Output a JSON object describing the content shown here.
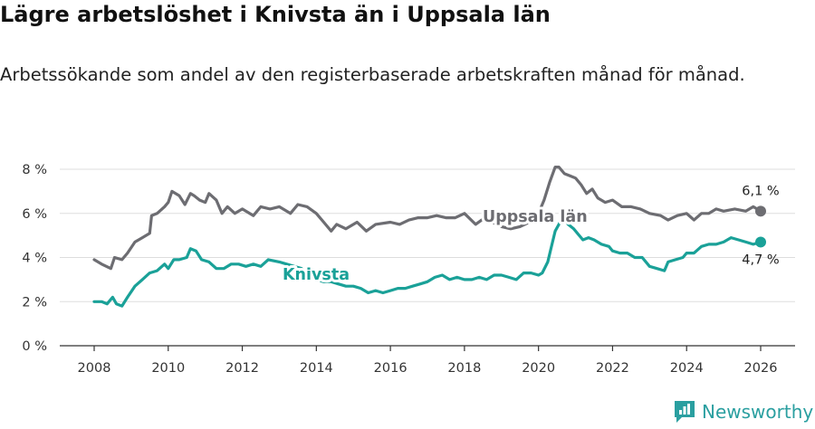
{
  "title": "Lägre arbetslöshet i Knivsta än i Uppsala län",
  "subtitle": "Arbetssökande som andel av den registerbaserade arbetskraften månad för månad.",
  "brand": {
    "name": "Newsworthy",
    "icon": "newsworthy-logo-icon"
  },
  "colors": {
    "uppsala": "#6d6d72",
    "knivsta": "#1aa198",
    "grid": "#dddddd"
  },
  "chart_data": {
    "type": "line",
    "title": "Lägre arbetslöshet i Knivsta än i Uppsala län",
    "xlabel": "",
    "ylabel": "",
    "xlim": [
      2007.5,
      2026.5
    ],
    "ylim": [
      0,
      8
    ],
    "grid": true,
    "y_ticks": [
      0,
      2,
      4,
      6,
      8
    ],
    "y_tick_labels": [
      "0 %",
      "2 %",
      "4 %",
      "6 %",
      "8 %"
    ],
    "x_ticks": [
      2008,
      2010,
      2012,
      2014,
      2016,
      2018,
      2020,
      2022,
      2024,
      2026
    ],
    "x_tick_labels": [
      "2008",
      "2010",
      "2012",
      "2014",
      "2016",
      "2018",
      "2020",
      "2022",
      "2024",
      "2026"
    ],
    "series": [
      {
        "name": "Uppsala län",
        "x": [
          2008.0,
          2008.2,
          2008.45,
          2008.55,
          2008.75,
          2008.9,
          2009.1,
          2009.3,
          2009.5,
          2009.55,
          2009.7,
          2009.9,
          2010.0,
          2010.1,
          2010.3,
          2010.45,
          2010.6,
          2010.7,
          2010.85,
          2011.0,
          2011.1,
          2011.3,
          2011.45,
          2011.6,
          2011.8,
          2012.0,
          2012.3,
          2012.5,
          2012.75,
          2013.0,
          2013.3,
          2013.5,
          2013.75,
          2014.0,
          2014.2,
          2014.4,
          2014.55,
          2014.8,
          2015.1,
          2015.35,
          2015.6,
          2016.0,
          2016.25,
          2016.5,
          2016.75,
          2017.0,
          2017.25,
          2017.5,
          2017.75,
          2018.0,
          2018.3,
          2018.55,
          2018.75,
          2019.0,
          2019.25,
          2019.5,
          2019.75,
          2020.0,
          2020.15,
          2020.3,
          2020.45,
          2020.55,
          2020.7,
          2020.85,
          2021.0,
          2021.15,
          2021.3,
          2021.45,
          2021.6,
          2021.8,
          2022.0,
          2022.25,
          2022.5,
          2022.75,
          2023.0,
          2023.3,
          2023.5,
          2023.75,
          2024.0,
          2024.2,
          2024.4,
          2024.6,
          2024.8,
          2025.0,
          2025.3,
          2025.6,
          2025.8,
          2026.0
        ],
        "values": [
          3.9,
          3.7,
          3.5,
          4.0,
          3.9,
          4.2,
          4.7,
          4.9,
          5.1,
          5.9,
          6.0,
          6.3,
          6.5,
          7.0,
          6.8,
          6.4,
          6.9,
          6.8,
          6.6,
          6.5,
          6.9,
          6.6,
          6.0,
          6.3,
          6.0,
          6.2,
          5.9,
          6.3,
          6.2,
          6.3,
          6.0,
          6.4,
          6.3,
          6.0,
          5.6,
          5.2,
          5.5,
          5.3,
          5.6,
          5.2,
          5.5,
          5.6,
          5.5,
          5.7,
          5.8,
          5.8,
          5.9,
          5.8,
          5.8,
          6.0,
          5.5,
          5.8,
          5.6,
          5.4,
          5.3,
          5.4,
          5.6,
          6.0,
          6.6,
          7.4,
          8.1,
          8.1,
          7.8,
          7.7,
          7.6,
          7.3,
          6.9,
          7.1,
          6.7,
          6.5,
          6.6,
          6.3,
          6.3,
          6.2,
          6.0,
          5.9,
          5.7,
          5.9,
          6.0,
          5.7,
          6.0,
          6.0,
          6.2,
          6.1,
          6.2,
          6.1,
          6.3,
          6.1
        ],
        "end_label": "6,1 %"
      },
      {
        "name": "Knivsta",
        "x": [
          2008.0,
          2008.2,
          2008.35,
          2008.5,
          2008.6,
          2008.75,
          2008.9,
          2009.1,
          2009.3,
          2009.5,
          2009.7,
          2009.9,
          2010.0,
          2010.15,
          2010.3,
          2010.5,
          2010.6,
          2010.75,
          2010.9,
          2011.1,
          2011.3,
          2011.5,
          2011.7,
          2011.9,
          2012.1,
          2012.3,
          2012.5,
          2012.7,
          2013.0,
          2013.2,
          2013.4,
          2013.6,
          2013.8,
          2014.0,
          2014.2,
          2014.4,
          2014.6,
          2014.8,
          2015.0,
          2015.2,
          2015.4,
          2015.6,
          2015.8,
          2016.0,
          2016.2,
          2016.4,
          2016.6,
          2016.8,
          2017.0,
          2017.2,
          2017.4,
          2017.6,
          2017.8,
          2018.0,
          2018.2,
          2018.4,
          2018.6,
          2018.8,
          2019.0,
          2019.2,
          2019.4,
          2019.6,
          2019.8,
          2020.0,
          2020.1,
          2020.25,
          2020.35,
          2020.45,
          2020.55,
          2020.65,
          2020.8,
          2020.95,
          2021.1,
          2021.2,
          2021.35,
          2021.5,
          2021.7,
          2021.9,
          2022.0,
          2022.2,
          2022.4,
          2022.6,
          2022.8,
          2023.0,
          2023.2,
          2023.4,
          2023.5,
          2023.7,
          2023.9,
          2024.0,
          2024.2,
          2024.4,
          2024.6,
          2024.8,
          2025.0,
          2025.2,
          2025.4,
          2025.6,
          2025.8,
          2026.0
        ],
        "values": [
          2.0,
          2.0,
          1.9,
          2.2,
          1.9,
          1.8,
          2.2,
          2.7,
          3.0,
          3.3,
          3.4,
          3.7,
          3.5,
          3.9,
          3.9,
          4.0,
          4.4,
          4.3,
          3.9,
          3.8,
          3.5,
          3.5,
          3.7,
          3.7,
          3.6,
          3.7,
          3.6,
          3.9,
          3.8,
          3.7,
          3.6,
          3.5,
          3.2,
          3.0,
          2.9,
          2.9,
          2.8,
          2.7,
          2.7,
          2.6,
          2.4,
          2.5,
          2.4,
          2.5,
          2.6,
          2.6,
          2.7,
          2.8,
          2.9,
          3.1,
          3.2,
          3.0,
          3.1,
          3.0,
          3.0,
          3.1,
          3.0,
          3.2,
          3.2,
          3.1,
          3.0,
          3.3,
          3.3,
          3.2,
          3.3,
          3.8,
          4.5,
          5.2,
          5.5,
          5.8,
          5.5,
          5.3,
          5.0,
          4.8,
          4.9,
          4.8,
          4.6,
          4.5,
          4.3,
          4.2,
          4.2,
          4.0,
          4.0,
          3.6,
          3.5,
          3.4,
          3.8,
          3.9,
          4.0,
          4.2,
          4.2,
          4.5,
          4.6,
          4.6,
          4.7,
          4.9,
          4.8,
          4.7,
          4.6,
          4.7
        ],
        "end_label": "4,7 %"
      }
    ]
  }
}
